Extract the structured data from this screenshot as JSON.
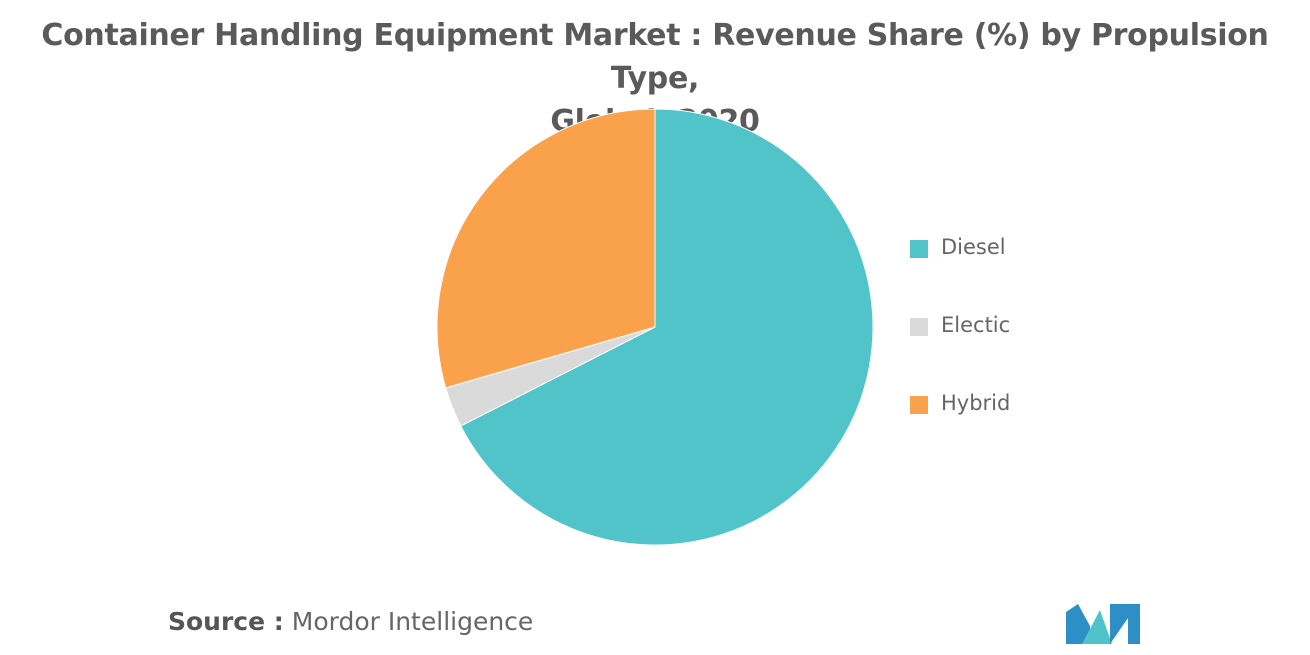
{
  "chart_data": {
    "type": "pie",
    "title_line1": "Container Handling Equipment Market : Revenue Share (%) by Propulsion Type,",
    "title_line2": "Global, 2020",
    "series": [
      {
        "name": "Diesel",
        "value": 67.5,
        "color": "#50C4C9"
      },
      {
        "name": "Electic",
        "value": 3.0,
        "color": "#DADADA"
      },
      {
        "name": "Hybrid",
        "value": 29.5,
        "color": "#F9A14B"
      }
    ],
    "legend_position": "right"
  },
  "source": {
    "prefix": "Source :",
    "text": "Mordor Intelligence"
  },
  "logo": {
    "icon": "mordor-intelligence-logo-icon",
    "colors": [
      "#2E8FC7",
      "#4FC3C9"
    ]
  }
}
